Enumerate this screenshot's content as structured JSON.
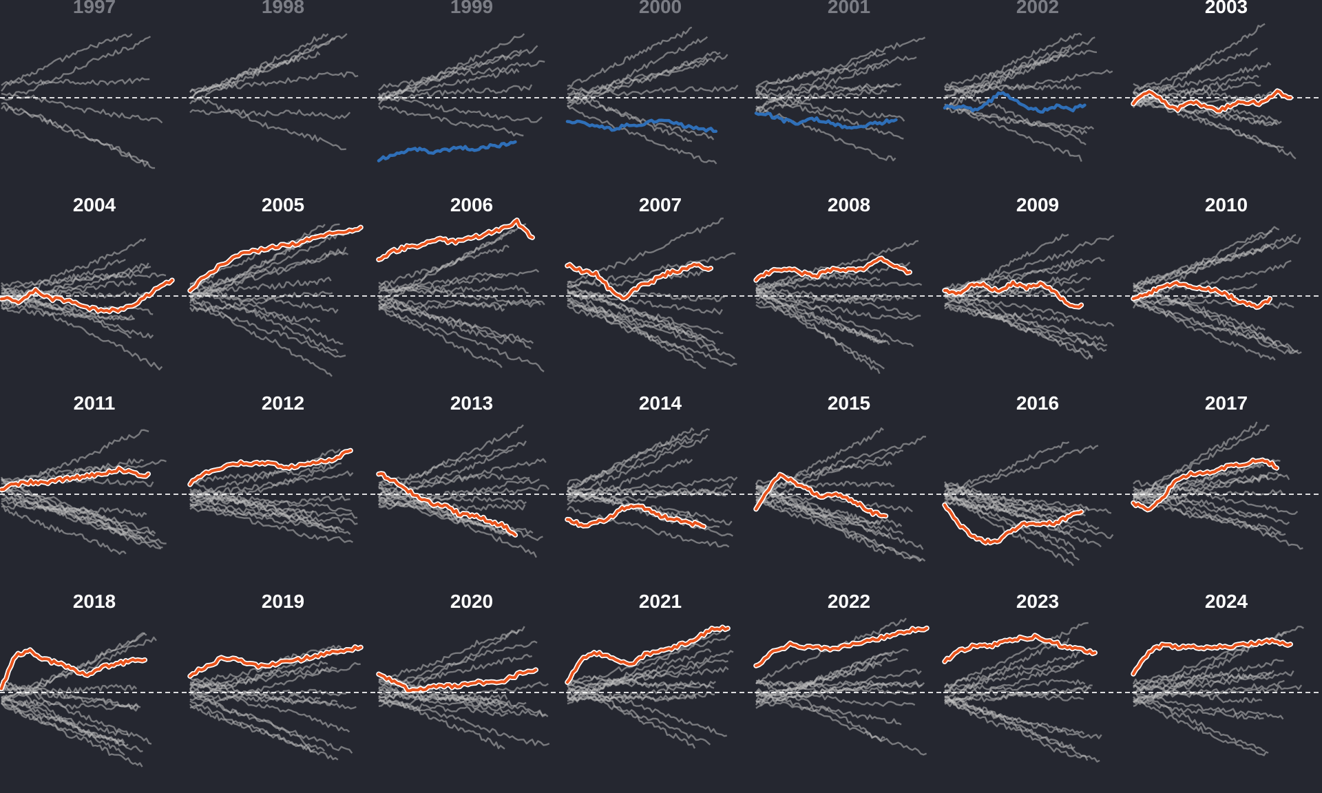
{
  "colors": {
    "background": "#252730",
    "context_line": "#bdbdbd",
    "highlight": "#e8531c",
    "highlight_outline": "#ffffff",
    "past": "#2f6fb8",
    "baseline": "#ffffff",
    "title_active": "#ffffff",
    "title_inactive": "#7b7d85"
  },
  "chart_data": {
    "type": "line",
    "layout": "small-multiples",
    "columns": 7,
    "baseline": 0,
    "x_range": [
      0,
      1
    ],
    "y_range": [
      -1,
      1
    ],
    "panels": [
      {
        "label": "1997",
        "active": false,
        "series": []
      },
      {
        "label": "1998",
        "active": false,
        "series": []
      },
      {
        "label": "1999",
        "active": false,
        "series": [
          {
            "kind": "past",
            "x_end": 0.8,
            "values": [
              -0.6,
              -0.55,
              -0.52,
              -0.5,
              -0.53,
              -0.51,
              -0.48,
              -0.5,
              -0.47,
              -0.46,
              -0.42
            ]
          }
        ]
      },
      {
        "label": "2000",
        "active": false,
        "series": [
          {
            "kind": "past",
            "x_end": 0.87,
            "values": [
              -0.22,
              -0.24,
              -0.28,
              -0.3,
              -0.27,
              -0.25,
              -0.22,
              -0.24,
              -0.28,
              -0.3,
              -0.32
            ]
          }
        ]
      },
      {
        "label": "2001",
        "active": false,
        "series": [
          {
            "kind": "past",
            "x_end": 0.82,
            "values": [
              -0.14,
              -0.17,
              -0.22,
              -0.25,
              -0.2,
              -0.23,
              -0.27,
              -0.3,
              -0.26,
              -0.24,
              -0.21
            ]
          }
        ]
      },
      {
        "label": "2002",
        "active": false,
        "series": [
          {
            "kind": "past",
            "x_end": 0.82,
            "values": [
              -0.09,
              -0.08,
              -0.12,
              -0.06,
              0.05,
              -0.02,
              -0.1,
              -0.13,
              -0.08,
              -0.12,
              -0.07
            ]
          }
        ]
      },
      {
        "label": "2003",
        "active": true,
        "series": [
          {
            "kind": "highlight",
            "x_end": 0.92,
            "values": [
              -0.05,
              0.06,
              -0.02,
              -0.12,
              -0.03,
              -0.08,
              -0.12,
              -0.06,
              -0.04,
              -0.05,
              0.06,
              0.0
            ]
          }
        ]
      },
      {
        "label": "2004",
        "active": true,
        "series": [
          {
            "kind": "highlight",
            "x_end": 1.0,
            "values": [
              -0.02,
              -0.05,
              0.05,
              -0.03,
              -0.04,
              -0.12,
              -0.14,
              -0.14,
              -0.06,
              0.06,
              0.15
            ]
          }
        ]
      },
      {
        "label": "2005",
        "active": true,
        "series": [
          {
            "kind": "highlight",
            "x_end": 1.0,
            "values": [
              0.06,
              0.2,
              0.32,
              0.42,
              0.44,
              0.48,
              0.5,
              0.55,
              0.6,
              0.62,
              0.66
            ]
          }
        ]
      },
      {
        "label": "2006",
        "active": true,
        "series": [
          {
            "kind": "highlight",
            "x_end": 0.9,
            "values": [
              0.36,
              0.44,
              0.48,
              0.5,
              0.55,
              0.52,
              0.56,
              0.6,
              0.65,
              0.72,
              0.56
            ]
          }
        ]
      },
      {
        "label": "2007",
        "active": true,
        "series": [
          {
            "kind": "highlight",
            "x_end": 0.84,
            "values": [
              0.3,
              0.24,
              0.22,
              0.06,
              -0.02,
              0.1,
              0.15,
              0.22,
              0.25,
              0.3,
              0.26
            ]
          }
        ]
      },
      {
        "label": "2008",
        "active": true,
        "series": [
          {
            "kind": "highlight",
            "x_end": 0.9,
            "values": [
              0.16,
              0.24,
              0.27,
              0.22,
              0.2,
              0.26,
              0.26,
              0.26,
              0.37,
              0.3,
              0.22
            ]
          }
        ]
      },
      {
        "label": "2009",
        "active": true,
        "series": [
          {
            "kind": "highlight",
            "x_end": 0.8,
            "values": [
              0.06,
              0.02,
              0.12,
              0.1,
              0.04,
              0.12,
              0.08,
              0.12,
              0.05,
              -0.08,
              -0.1
            ]
          }
        ]
      },
      {
        "label": "2010",
        "active": true,
        "series": [
          {
            "kind": "highlight",
            "x_end": 0.8,
            "values": [
              -0.02,
              0.02,
              0.08,
              0.12,
              0.1,
              0.08,
              0.06,
              0.0,
              -0.06,
              -0.1,
              -0.04
            ]
          }
        ]
      },
      {
        "label": "2011",
        "active": true,
        "series": [
          {
            "kind": "highlight",
            "x_end": 0.86,
            "values": [
              0.05,
              0.1,
              0.12,
              0.1,
              0.14,
              0.16,
              0.18,
              0.2,
              0.24,
              0.2,
              0.18
            ]
          }
        ]
      },
      {
        "label": "2012",
        "active": true,
        "series": [
          {
            "kind": "highlight",
            "x_end": 0.94,
            "values": [
              0.1,
              0.2,
              0.26,
              0.3,
              0.3,
              0.3,
              0.25,
              0.28,
              0.32,
              0.34,
              0.44
            ]
          }
        ]
      },
      {
        "label": "2013",
        "active": true,
        "series": [
          {
            "kind": "highlight",
            "x_end": 0.8,
            "values": [
              0.2,
              0.14,
              0.05,
              -0.04,
              -0.1,
              -0.12,
              -0.2,
              -0.2,
              -0.26,
              -0.3,
              -0.38
            ]
          }
        ]
      },
      {
        "label": "2014",
        "active": true,
        "series": [
          {
            "kind": "highlight",
            "x_end": 0.8,
            "values": [
              -0.24,
              -0.3,
              -0.28,
              -0.24,
              -0.14,
              -0.1,
              -0.16,
              -0.22,
              -0.24,
              -0.28,
              -0.3
            ]
          }
        ]
      },
      {
        "label": "2015",
        "active": true,
        "series": [
          {
            "kind": "highlight",
            "x_end": 0.76,
            "values": [
              -0.14,
              0.06,
              0.2,
              0.1,
              0.05,
              -0.02,
              0.0,
              -0.04,
              -0.1,
              -0.18,
              -0.2
            ]
          }
        ]
      },
      {
        "label": "2016",
        "active": true,
        "series": [
          {
            "kind": "highlight",
            "x_end": 0.8,
            "values": [
              -0.1,
              -0.28,
              -0.4,
              -0.46,
              -0.44,
              -0.34,
              -0.28,
              -0.28,
              -0.28,
              -0.22,
              -0.16
            ]
          }
        ]
      },
      {
        "label": "2017",
        "active": true,
        "series": [
          {
            "kind": "highlight",
            "x_end": 0.84,
            "values": [
              -0.08,
              -0.16,
              -0.04,
              0.14,
              0.2,
              0.2,
              0.24,
              0.28,
              0.3,
              0.34,
              0.26
            ]
          }
        ]
      },
      {
        "label": "2018",
        "active": true,
        "series": [
          {
            "kind": "highlight",
            "x_end": 0.84,
            "values": [
              0.04,
              0.36,
              0.4,
              0.32,
              0.28,
              0.22,
              0.18,
              0.24,
              0.28,
              0.3,
              0.32
            ]
          }
        ]
      },
      {
        "label": "2019",
        "active": true,
        "series": [
          {
            "kind": "highlight",
            "x_end": 1.0,
            "values": [
              0.16,
              0.26,
              0.34,
              0.3,
              0.26,
              0.28,
              0.3,
              0.34,
              0.38,
              0.4,
              0.44
            ]
          }
        ]
      },
      {
        "label": "2020",
        "active": true,
        "series": [
          {
            "kind": "highlight",
            "x_end": 0.92,
            "values": [
              0.18,
              0.1,
              0.02,
              0.04,
              0.06,
              0.06,
              0.1,
              0.1,
              0.12,
              0.18,
              0.22
            ]
          }
        ]
      },
      {
        "label": "2021",
        "active": true,
        "series": [
          {
            "kind": "highlight",
            "x_end": 0.94,
            "values": [
              0.1,
              0.35,
              0.38,
              0.32,
              0.28,
              0.38,
              0.4,
              0.46,
              0.52,
              0.62,
              0.62
            ]
          }
        ]
      },
      {
        "label": "2022",
        "active": true,
        "series": [
          {
            "kind": "highlight",
            "x_end": 1.0,
            "values": [
              0.26,
              0.4,
              0.46,
              0.44,
              0.42,
              0.44,
              0.48,
              0.52,
              0.56,
              0.6,
              0.62
            ]
          }
        ]
      },
      {
        "label": "2023",
        "active": true,
        "series": [
          {
            "kind": "highlight",
            "x_end": 0.88,
            "values": [
              0.3,
              0.4,
              0.46,
              0.44,
              0.5,
              0.52,
              0.54,
              0.5,
              0.44,
              0.42,
              0.38
            ]
          }
        ]
      },
      {
        "label": "2024",
        "active": true,
        "series": [
          {
            "kind": "highlight",
            "x_end": 0.92,
            "values": [
              0.18,
              0.4,
              0.46,
              0.44,
              0.44,
              0.44,
              0.44,
              0.46,
              0.48,
              0.5,
              0.46
            ]
          }
        ]
      }
    ]
  }
}
